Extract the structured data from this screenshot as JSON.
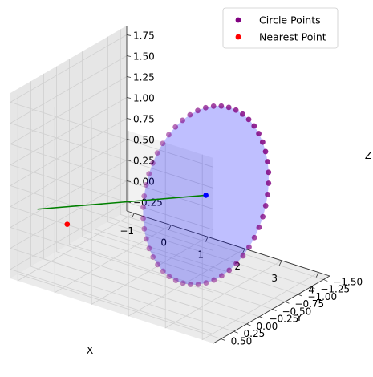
{
  "chart_data": {
    "type": "scatter",
    "projection": "3d",
    "title": "",
    "xlabel": "X",
    "ylabel": "Y",
    "zlabel": "Z",
    "xlim": [
      -1.2,
      4.3
    ],
    "ylim": [
      -1.62,
      0.65
    ],
    "zlim": [
      -0.36,
      1.86
    ],
    "x_ticks": [
      -1,
      0,
      1,
      2,
      3,
      4
    ],
    "x_tick_labels": [
      "−1",
      "0",
      "1",
      "2",
      "3",
      "4"
    ],
    "y_ticks": [
      -1.5,
      -1.25,
      -1.0,
      -0.75,
      -0.5,
      -0.25,
      0.0,
      0.25,
      0.5
    ],
    "y_tick_labels": [
      "−1.50",
      "−1.25",
      "−1.00",
      "−0.75",
      "−0.50",
      "−0.25",
      "0.00",
      "0.25",
      "0.50"
    ],
    "z_ticks": [
      -0.25,
      0.0,
      0.25,
      0.5,
      0.75,
      1.0,
      1.25,
      1.5,
      1.75
    ],
    "z_tick_labels": [
      "−0.25",
      "0.00",
      "0.25",
      "0.50",
      "0.75",
      "1.00",
      "1.25",
      "1.50",
      "1.75"
    ],
    "grid": true,
    "legend": {
      "placement": "upper right",
      "entries": [
        {
          "label": "Circle Points",
          "color": "#800080"
        },
        {
          "label": "Nearest Point",
          "color": "#ff0000"
        }
      ]
    },
    "circle": {
      "center": [
        2.5,
        -0.5,
        0.75
      ],
      "radius": 1.0,
      "u": [
        0.0,
        -0.447,
        0.894
      ],
      "v": [
        0.707,
        -0.632,
        -0.316
      ],
      "n_points": 50,
      "point_color": "#800080",
      "fill_color": "#0000ff",
      "fill_alpha": 0.25
    },
    "series": [
      {
        "name": "Circle Points",
        "color": "#800080",
        "description": "50 points evenly spaced on the circle"
      },
      {
        "name": "Nearest Point",
        "color": "#ff0000",
        "points": [
          [
            0.2,
            0.55,
            0.45
          ]
        ]
      }
    ],
    "center_marker": {
      "color": "#0000ff",
      "point": [
        2.5,
        -0.5,
        0.75
      ]
    },
    "line": {
      "color": "#008000",
      "from": [
        -0.4,
        0.7,
        0.6
      ],
      "to": [
        2.5,
        -0.5,
        0.75
      ]
    }
  }
}
